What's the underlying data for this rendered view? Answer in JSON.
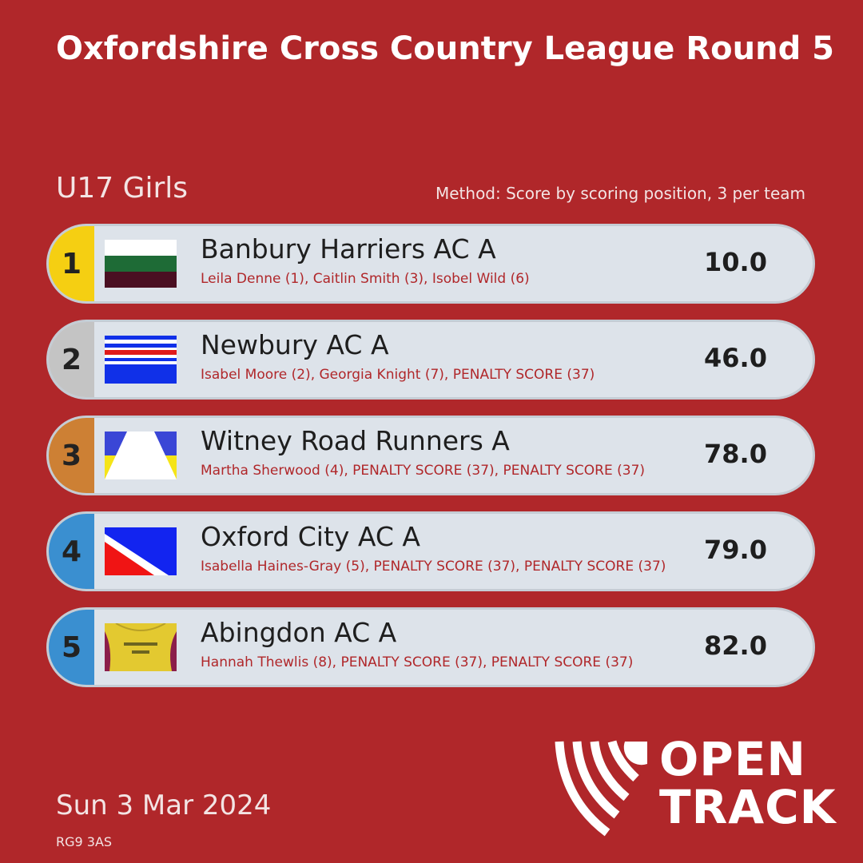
{
  "title": "Oxfordshire Cross Country League Round 5",
  "category": "U17 Girls",
  "method": "Method: Score by scoring position, 3 per team",
  "results": [
    {
      "position": "1",
      "team": "Banbury Harriers AC A",
      "members": "Leila Denne (1), Caitlin Smith (3), Isobel Wild (6)",
      "score": "10.0",
      "position_color": "#f5cf12"
    },
    {
      "position": "2",
      "team": "Newbury AC A",
      "members": "Isabel Moore (2), Georgia Knight (7), PENALTY SCORE (37)",
      "score": "46.0",
      "position_color": "#c4c4c4"
    },
    {
      "position": "3",
      "team": "Witney Road Runners A",
      "members": "Martha Sherwood (4), PENALTY SCORE (37), PENALTY SCORE (37)",
      "score": "78.0",
      "position_color": "#cd8034"
    },
    {
      "position": "4",
      "team": "Oxford City AC A",
      "members": "Isabella Haines-Gray (5), PENALTY SCORE (37), PENALTY SCORE (37)",
      "score": "79.0",
      "position_color": "#3a8fd0"
    },
    {
      "position": "5",
      "team": "Abingdon AC A",
      "members": "Hannah Thewlis (8), PENALTY SCORE (37), PENALTY SCORE (37)",
      "score": "82.0",
      "position_color": "#3a8fd0"
    }
  ],
  "date": "Sun 3 Mar 2024",
  "postcode": "RG9 3AS",
  "logo": {
    "line1": "OPEN",
    "line2": "TRACK"
  },
  "colors": {
    "background": "#b0272a",
    "card": "#dde3ea",
    "accent_text": "#b0272a"
  }
}
